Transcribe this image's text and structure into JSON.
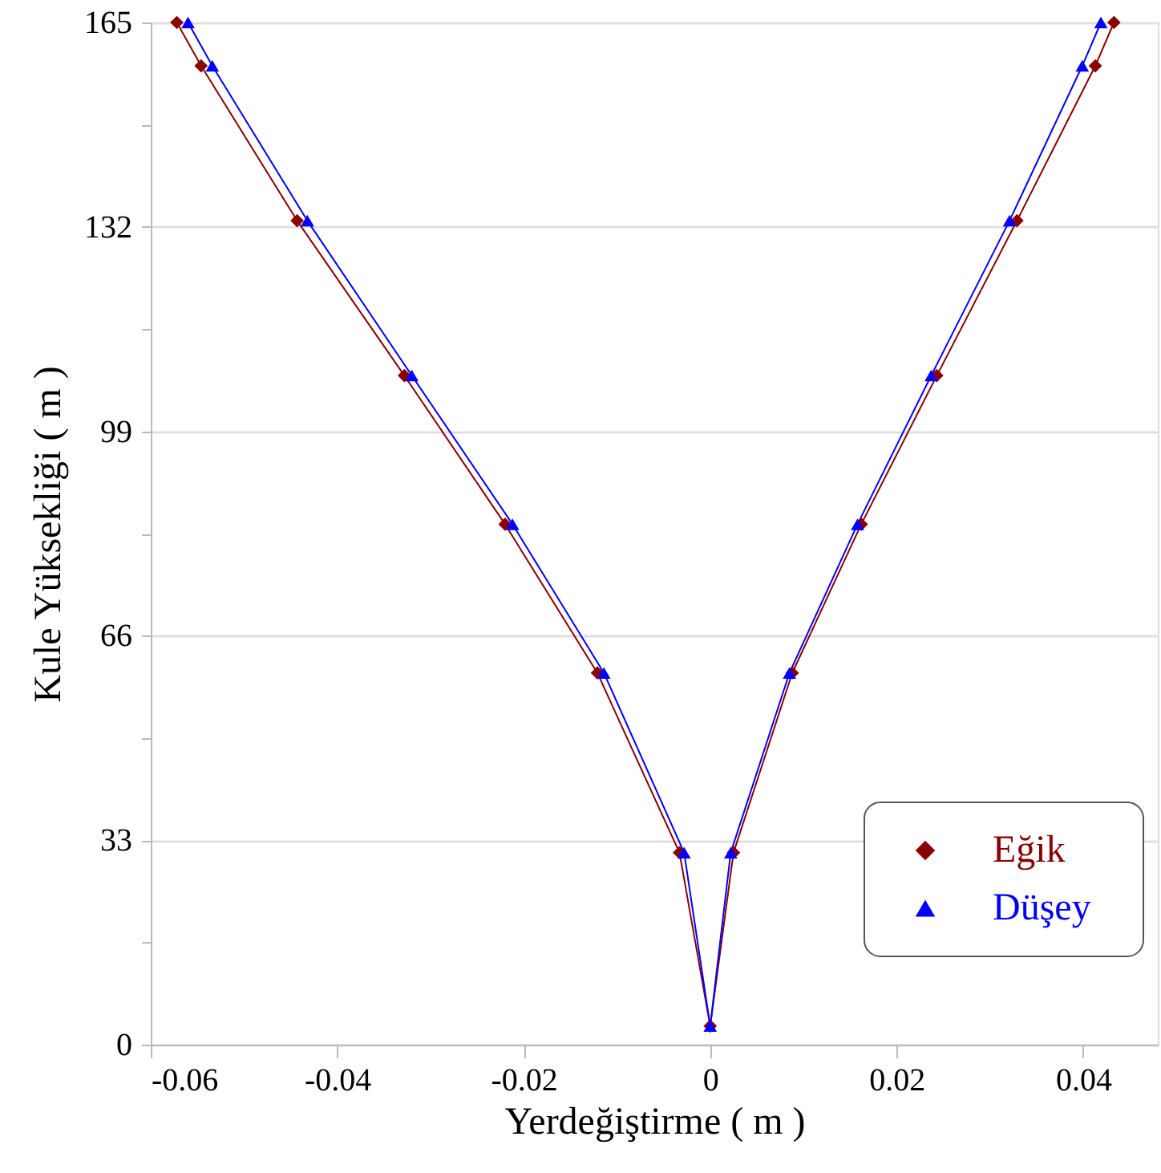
{
  "chart_data": {
    "type": "line",
    "xlabel": "Yerdeğiştirme ( m )",
    "ylabel": "Kule Yüksekliği ( m )",
    "xlim": [
      -0.06,
      0.048
    ],
    "xticks": [
      -0.06,
      -0.04,
      -0.02,
      0,
      0.02,
      0.04
    ],
    "ylim": [
      0,
      165
    ],
    "yticks": [
      0,
      {
        "value": 16.5,
        "label": null
      },
      33,
      {
        "value": 49.5,
        "label": null
      },
      66,
      {
        "value": 82.5,
        "label": null
      },
      99,
      {
        "value": 115.5,
        "label": null
      },
      132,
      {
        "value": 148.5,
        "label": null
      },
      165
    ],
    "grid": "y",
    "legend": "bottom right",
    "series": [
      {
        "name": "Eğik",
        "color": "#8b0000",
        "marker": "diamond",
        "x": [
          -0.0572,
          -0.0546,
          -0.0443,
          -0.0328,
          -0.022,
          -0.0121,
          -0.0033,
          0,
          0.0025,
          0.0088,
          0.0162,
          0.0243,
          0.0329,
          0.0413,
          0.0433
        ],
        "values": [
          165,
          158,
          133,
          108,
          84,
          60,
          31,
          3,
          31,
          60,
          84,
          108,
          133,
          158,
          165
        ]
      },
      {
        "name": "Düşey",
        "color": "#0000ff",
        "marker": "triangle",
        "x": [
          -0.056,
          -0.0534,
          -0.0432,
          -0.032,
          -0.0212,
          -0.0114,
          -0.0028,
          0,
          0.0022,
          0.0085,
          0.0158,
          0.0237,
          0.0321,
          0.0399,
          0.0419
        ],
        "values": [
          165,
          158,
          133,
          108,
          84,
          60,
          31,
          3,
          31,
          60,
          84,
          108,
          133,
          158,
          165
        ]
      }
    ]
  }
}
